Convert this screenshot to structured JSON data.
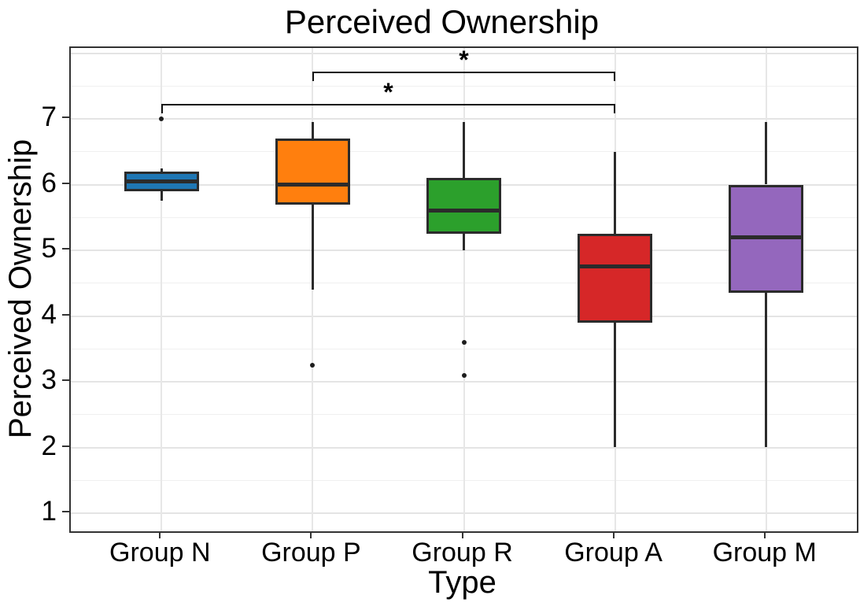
{
  "title": "Perceived Ownership",
  "axes": {
    "x_label": "Type",
    "y_label": "Perceived Ownership",
    "y_tick_labels": [
      "1",
      "2",
      "3",
      "4",
      "5",
      "6",
      "7"
    ],
    "y_tick_values": [
      1,
      2,
      3,
      4,
      5,
      6,
      7
    ]
  },
  "chart_data": {
    "type": "box",
    "title": "Perceived Ownership",
    "xlabel": "Type",
    "ylabel": "Perceived Ownership",
    "ylim": [
      0.72,
      8.08
    ],
    "grid": "on",
    "y_grid_major": [
      1,
      2,
      3,
      4,
      5,
      6,
      7,
      8
    ],
    "y_grid_minor": [
      1.5,
      2.5,
      3.5,
      4.5,
      5.5,
      6.5,
      7.5
    ],
    "categories": [
      "Group N",
      "Group P",
      "Group R",
      "Group A",
      "Group M"
    ],
    "series": [
      {
        "name": "Group N",
        "color": "#1f77b4",
        "whisker_low": 5.75,
        "q1": 5.9,
        "median": 6.05,
        "q3": 6.2,
        "whisker_high": 6.25,
        "outliers": [
          7.0
        ]
      },
      {
        "name": "Group P",
        "color": "#ff7f0e",
        "whisker_low": 4.4,
        "q1": 5.7,
        "median": 6.0,
        "q3": 6.7,
        "whisker_high": 6.95,
        "outliers": [
          3.25
        ]
      },
      {
        "name": "Group R",
        "color": "#2ca02c",
        "whisker_low": 5.0,
        "q1": 5.25,
        "median": 5.6,
        "q3": 6.1,
        "whisker_high": 6.95,
        "outliers": [
          3.6,
          3.1
        ]
      },
      {
        "name": "Group A",
        "color": "#d62728",
        "whisker_low": 2.0,
        "q1": 3.9,
        "median": 4.75,
        "q3": 5.25,
        "whisker_high": 6.5,
        "outliers": []
      },
      {
        "name": "Group M",
        "color": "#9467bd",
        "whisker_low": 2.0,
        "q1": 4.35,
        "median": 5.2,
        "q3": 6.0,
        "whisker_high": 6.95,
        "outliers": []
      }
    ],
    "annotations": [
      {
        "label": "*",
        "from": "Group P",
        "to": "Group A",
        "bar_value": 7.72
      },
      {
        "label": "*",
        "from": "Group N",
        "to": "Group A",
        "bar_value": 7.23
      }
    ],
    "box_border_color": "#2b2b2b",
    "outlier_color": "#1d1d1d"
  }
}
